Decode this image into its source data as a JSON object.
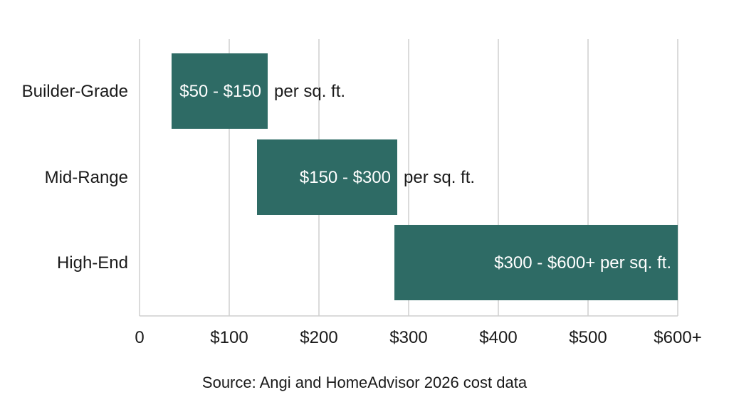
{
  "chart_data": {
    "type": "bar",
    "orientation": "horizontal-range",
    "categories": [
      "Builder-Grade",
      "Mid-Range",
      "High-End"
    ],
    "ranges": [
      {
        "category": "Builder-Grade",
        "low": 50,
        "high": 150,
        "label_in": "$50 - $150",
        "label_out": "per sq. ft."
      },
      {
        "category": "Mid-Range",
        "low": 150,
        "high": 300,
        "label_in": "$150 - $300",
        "label_out": "per sq. ft."
      },
      {
        "category": "High-End",
        "low": 300,
        "high": 600,
        "label_in": "$300 - $600+ per sq. ft.",
        "label_out": ""
      }
    ],
    "xlim": [
      0,
      600
    ],
    "xticks": [
      {
        "value": 0,
        "label": "0"
      },
      {
        "value": 100,
        "label": "$100"
      },
      {
        "value": 200,
        "label": "$200"
      },
      {
        "value": 300,
        "label": "$300"
      },
      {
        "value": 400,
        "label": "$400"
      },
      {
        "value": 500,
        "label": "$500"
      },
      {
        "value": 600,
        "label": "$600+"
      }
    ],
    "grid": true,
    "bar_color": "#2e6b65",
    "title": "",
    "xlabel": "",
    "ylabel": ""
  },
  "source": "Source: Angi and HomeAdvisor 2026 cost data"
}
